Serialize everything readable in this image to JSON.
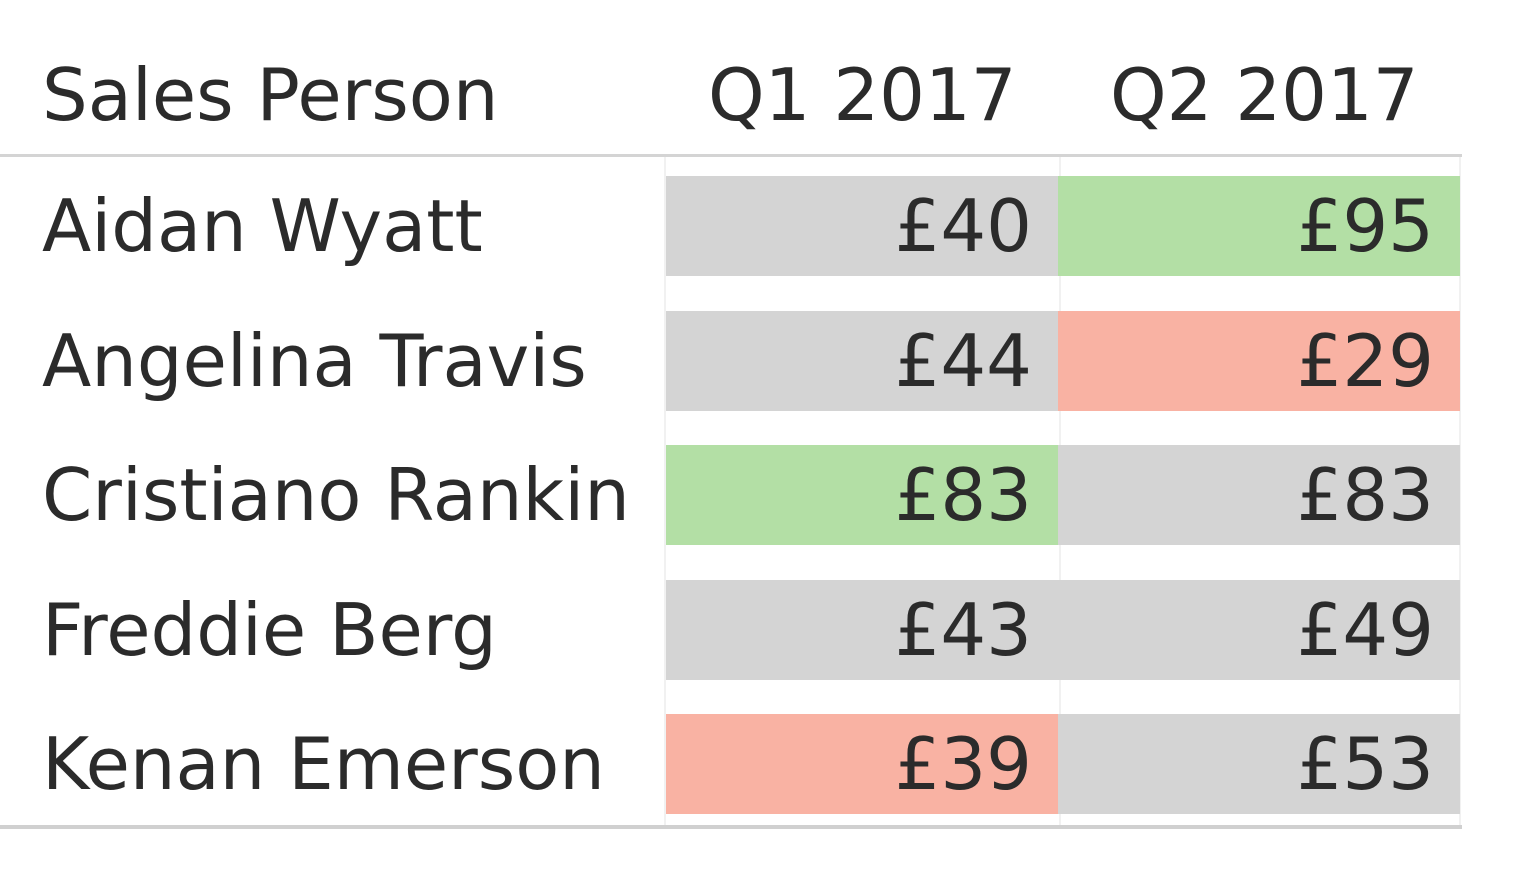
{
  "chart_data": {
    "type": "table",
    "columns": [
      "Sales Person",
      "Q1 2017",
      "Q2 2017"
    ],
    "rows": [
      {
        "name": "Aidan Wyatt",
        "q1": {
          "value": 40,
          "label": "£40",
          "status": "neutral"
        },
        "q2": {
          "value": 95,
          "label": "£95",
          "status": "high"
        }
      },
      {
        "name": "Angelina Travis",
        "q1": {
          "value": 44,
          "label": "£44",
          "status": "neutral"
        },
        "q2": {
          "value": 29,
          "label": "£29",
          "status": "low"
        }
      },
      {
        "name": "Cristiano Rankin",
        "q1": {
          "value": 83,
          "label": "£83",
          "status": "high"
        },
        "q2": {
          "value": 83,
          "label": "£83",
          "status": "neutral"
        }
      },
      {
        "name": "Freddie Berg",
        "q1": {
          "value": 43,
          "label": "£43",
          "status": "neutral"
        },
        "q2": {
          "value": 49,
          "label": "£49",
          "status": "neutral"
        }
      },
      {
        "name": "Kenan Emerson",
        "q1": {
          "value": 39,
          "label": "£39",
          "status": "low"
        },
        "q2": {
          "value": 53,
          "label": "£53",
          "status": "neutral"
        }
      }
    ],
    "colors": {
      "high": "#b3dfa5",
      "low": "#f9b2a3",
      "neutral": "#d4d4d4",
      "text": "#2b2b2b",
      "rule": "#d4d4d4"
    }
  }
}
